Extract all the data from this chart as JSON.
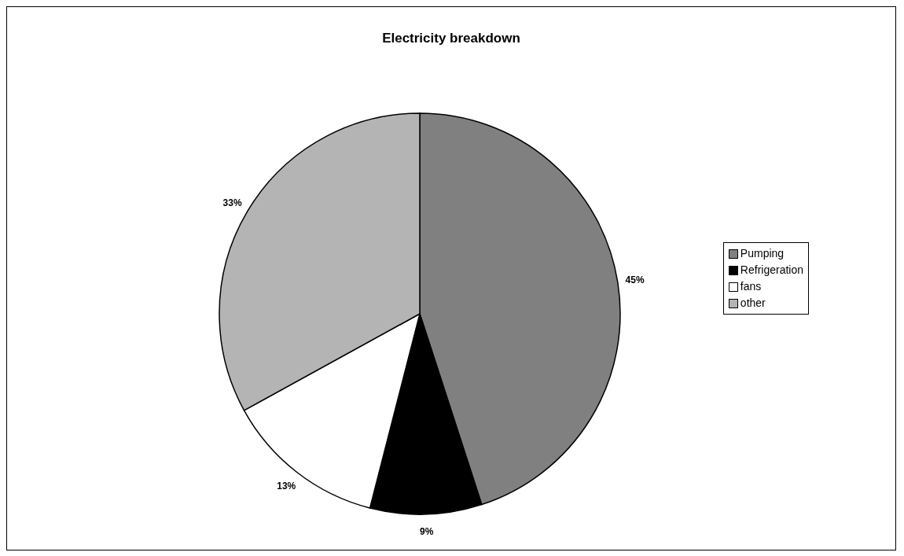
{
  "chart_data": {
    "type": "pie",
    "title": "Electricity breakdown",
    "categories": [
      "Pumping",
      "Refrigeration",
      "fans",
      "other"
    ],
    "values": [
      45,
      9,
      13,
      33
    ],
    "colors": [
      "#808080",
      "#000000",
      "#ffffff",
      "#b4b4b4"
    ],
    "value_labels": [
      "45%",
      "9%",
      "13%",
      "33%"
    ],
    "legend": "right"
  }
}
